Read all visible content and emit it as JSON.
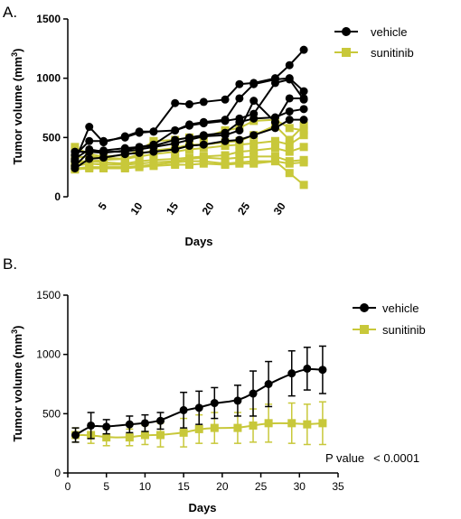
{
  "colors": {
    "vehicle": "#000000",
    "sunitinib": "#c8c83a"
  },
  "chart_data": [
    {
      "panel": "A.",
      "type": "line",
      "xlabel": "Days",
      "ylabel": "Tumor volume (mm",
      "ylabel_sup": "3",
      "ylabel_close": ")",
      "ylim": [
        0,
        1500
      ],
      "xlim": [
        0,
        34
      ],
      "xticks": [
        "5",
        "10",
        "15",
        "20",
        "25",
        "30"
      ],
      "xtick_values": [
        5,
        10,
        15,
        20,
        25,
        30
      ],
      "yticks": [
        "0",
        "500",
        "1000",
        "1500"
      ],
      "ytick_values": [
        0,
        500,
        1000,
        1500
      ],
      "legend": {
        "placement": "top-right",
        "items": [
          "vehicle",
          "sunitinib"
        ]
      },
      "x": [
        1,
        3,
        5,
        8,
        10,
        12,
        15,
        17,
        19,
        22,
        24,
        26,
        29,
        31,
        33
      ],
      "series": [
        {
          "group": "vehicle",
          "values": [
            300,
            590,
            460,
            510,
            550,
            550,
            790,
            780,
            800,
            820,
            950,
            960,
            1000,
            1110,
            1240
          ]
        },
        {
          "group": "vehicle",
          "values": [
            260,
            380,
            370,
            390,
            420,
            440,
            560,
            610,
            630,
            650,
            830,
            950,
            990,
            1000,
            890
          ]
        },
        {
          "group": "vehicle",
          "values": [
            350,
            470,
            470,
            500,
            540,
            550,
            560,
            600,
            620,
            640,
            660,
            700,
            960,
            990,
            820
          ]
        },
        {
          "group": "vehicle",
          "values": [
            320,
            400,
            380,
            380,
            400,
            420,
            450,
            480,
            510,
            520,
            560,
            810,
            630,
            830,
            830
          ]
        },
        {
          "group": "vehicle",
          "values": [
            380,
            380,
            390,
            410,
            420,
            430,
            480,
            500,
            520,
            540,
            630,
            660,
            670,
            720,
            740
          ]
        },
        {
          "group": "vehicle",
          "values": [
            240,
            320,
            330,
            360,
            370,
            380,
            400,
            430,
            440,
            470,
            480,
            520,
            580,
            650,
            650
          ]
        },
        {
          "group": "sunitinib",
          "values": [
            420,
            360,
            340,
            350,
            390,
            470,
            480,
            500,
            500,
            560,
            580,
            640,
            650,
            580,
            560
          ]
        },
        {
          "group": "sunitinib",
          "values": [
            330,
            340,
            330,
            320,
            360,
            390,
            410,
            440,
            440,
            460,
            470,
            520,
            600,
            480,
            600
          ]
        },
        {
          "group": "sunitinib",
          "values": [
            300,
            300,
            310,
            320,
            340,
            360,
            380,
            400,
            410,
            430,
            440,
            450,
            470,
            440,
            520
          ]
        },
        {
          "group": "sunitinib",
          "values": [
            280,
            300,
            290,
            280,
            300,
            310,
            320,
            330,
            340,
            350,
            380,
            390,
            410,
            380,
            420
          ]
        },
        {
          "group": "sunitinib",
          "values": [
            260,
            280,
            270,
            270,
            280,
            290,
            300,
            320,
            330,
            320,
            330,
            340,
            340,
            300,
            310
          ]
        },
        {
          "group": "sunitinib",
          "values": [
            240,
            250,
            250,
            250,
            260,
            270,
            290,
            300,
            300,
            280,
            290,
            300,
            300,
            280,
            290
          ]
        },
        {
          "group": "sunitinib",
          "values": [
            230,
            240,
            240,
            240,
            250,
            260,
            270,
            270,
            280,
            270,
            280,
            280,
            300,
            200,
            100
          ]
        }
      ]
    },
    {
      "panel": "B.",
      "type": "line",
      "xlabel": "Days",
      "ylabel": "Tumor volume (mm",
      "ylabel_sup": "3",
      "ylabel_close": ")",
      "ylim": [
        0,
        1500
      ],
      "xlim": [
        0,
        35
      ],
      "xticks": [
        "0",
        "5",
        "10",
        "15",
        "20",
        "25",
        "30",
        "35"
      ],
      "xtick_values": [
        0,
        5,
        10,
        15,
        20,
        25,
        30,
        35
      ],
      "yticks": [
        "0",
        "500",
        "1000",
        "1500"
      ],
      "ytick_values": [
        0,
        500,
        1000,
        1500
      ],
      "legend": {
        "placement": "right",
        "items": [
          "vehicle",
          "sunitinib"
        ]
      },
      "annotation": {
        "label": "P value",
        "value": "< 0.0001"
      },
      "series": [
        {
          "name": "vehicle",
          "group": "vehicle",
          "x": [
            1,
            3,
            5,
            8,
            10,
            12,
            15,
            17,
            19,
            22,
            24,
            26,
            29,
            31,
            33
          ],
          "mean": [
            320,
            400,
            390,
            410,
            420,
            440,
            530,
            550,
            590,
            610,
            670,
            750,
            840,
            880,
            870
          ],
          "err": [
            60,
            110,
            60,
            70,
            70,
            70,
            150,
            140,
            130,
            130,
            190,
            190,
            190,
            180,
            200
          ]
        },
        {
          "name": "sunitinib",
          "group": "sunitinib",
          "x": [
            1,
            3,
            5,
            8,
            10,
            12,
            15,
            17,
            19,
            22,
            24,
            26,
            29,
            31,
            33
          ],
          "mean": [
            320,
            320,
            300,
            300,
            320,
            320,
            340,
            370,
            380,
            380,
            400,
            420,
            420,
            410,
            420
          ],
          "err": [
            60,
            70,
            70,
            70,
            80,
            100,
            120,
            120,
            130,
            130,
            140,
            160,
            170,
            170,
            180
          ]
        }
      ]
    }
  ]
}
